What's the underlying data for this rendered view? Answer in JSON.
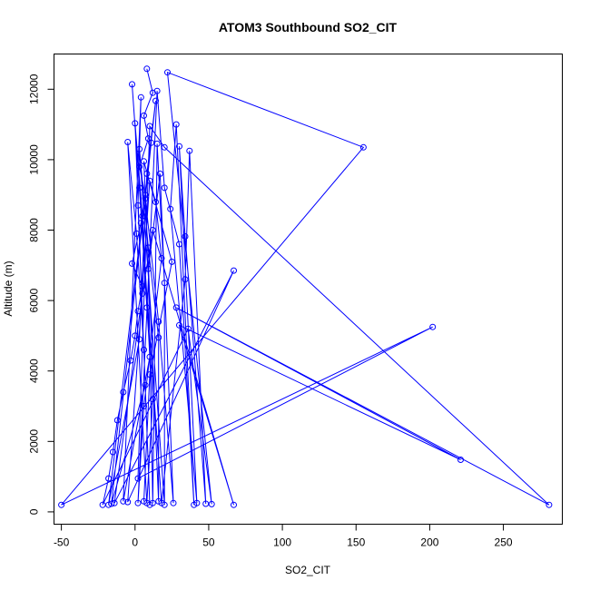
{
  "chart_data": {
    "type": "line",
    "title": "ATOM3 Southbound SO2_CIT",
    "xlabel": "SO2_CIT",
    "ylabel": "Altitude (m)",
    "xlim": [
      -55,
      290
    ],
    "ylim": [
      -350,
      13000
    ],
    "xticks": [
      -50,
      0,
      50,
      100,
      150,
      200,
      250
    ],
    "yticks": [
      0,
      2000,
      4000,
      6000,
      8000,
      10000,
      12000
    ],
    "grid": false,
    "series_color": "#0000ff",
    "series": [
      {
        "points": [
          {
            "x": 8,
            "y": 12580
          },
          {
            "x": 12,
            "y": 11900
          },
          {
            "x": 6,
            "y": 11250
          },
          {
            "x": 9,
            "y": 10600
          },
          {
            "x": 3,
            "y": 9800
          },
          {
            "x": 7,
            "y": 9000
          },
          {
            "x": 4,
            "y": 8200
          },
          {
            "x": -2,
            "y": 7050
          },
          {
            "x": 5,
            "y": 6400
          },
          {
            "x": 2,
            "y": 5700
          },
          {
            "x": 0,
            "y": 5000
          },
          {
            "x": -3,
            "y": 4300
          },
          {
            "x": -8,
            "y": 3400
          },
          {
            "x": -12,
            "y": 2600
          },
          {
            "x": -15,
            "y": 1700
          },
          {
            "x": -18,
            "y": 950
          },
          {
            "x": -22,
            "y": 200
          },
          {
            "x": 36,
            "y": 5200
          },
          {
            "x": 52,
            "y": 220
          },
          {
            "x": 22,
            "y": 12480
          },
          {
            "x": 155,
            "y": 10350
          },
          {
            "x": -50,
            "y": 200
          },
          {
            "x": 202,
            "y": 5250
          },
          {
            "x": 2,
            "y": 950
          },
          {
            "x": 10,
            "y": 10950
          },
          {
            "x": 20,
            "y": 10350
          },
          {
            "x": 281,
            "y": 200
          },
          {
            "x": 28,
            "y": 5800
          },
          {
            "x": 221,
            "y": 1480
          },
          {
            "x": 30,
            "y": 5300
          },
          {
            "x": 67,
            "y": 200
          },
          {
            "x": 12,
            "y": 8000
          },
          {
            "x": 5,
            "y": 6200
          },
          {
            "x": -14,
            "y": 250
          },
          {
            "x": 67,
            "y": 6850
          },
          {
            "x": -5,
            "y": 280
          },
          {
            "x": 10,
            "y": 9400
          },
          {
            "x": 14,
            "y": 8800
          },
          {
            "x": 18,
            "y": 7200
          },
          {
            "x": 6,
            "y": 3000
          },
          {
            "x": 2,
            "y": 250
          },
          {
            "x": 15,
            "y": 11950
          },
          {
            "x": 20,
            "y": 9200
          },
          {
            "x": 30,
            "y": 7600
          },
          {
            "x": 40,
            "y": 200
          },
          {
            "x": 28,
            "y": 11000
          },
          {
            "x": 24,
            "y": 8600
          },
          {
            "x": 42,
            "y": 250
          },
          {
            "x": 30,
            "y": 10380
          },
          {
            "x": 34,
            "y": 7820
          },
          {
            "x": 48,
            "y": 230
          },
          {
            "x": 37,
            "y": 10250
          },
          {
            "x": 34,
            "y": 6600
          },
          {
            "x": 18,
            "y": 250
          },
          {
            "x": -2,
            "y": 12140
          },
          {
            "x": 3,
            "y": 9200
          },
          {
            "x": 8,
            "y": 5800
          },
          {
            "x": 12,
            "y": 3200
          },
          {
            "x": 8,
            "y": 250
          },
          {
            "x": -5,
            "y": 10500
          },
          {
            "x": 1,
            "y": 7900
          },
          {
            "x": 6,
            "y": 4600
          },
          {
            "x": 10,
            "y": 200
          },
          {
            "x": 0,
            "y": 11030
          },
          {
            "x": 5,
            "y": 8400
          },
          {
            "x": 10,
            "y": 4400
          },
          {
            "x": -8,
            "y": 300
          },
          {
            "x": 4,
            "y": 11770
          },
          {
            "x": 2,
            "y": 8700
          },
          {
            "x": 7,
            "y": 3600
          },
          {
            "x": -16,
            "y": 230
          },
          {
            "x": 14,
            "y": 11670
          },
          {
            "x": 8,
            "y": 9600
          },
          {
            "x": 3,
            "y": 4900
          },
          {
            "x": -18,
            "y": 200
          },
          {
            "x": 11,
            "y": 10480
          },
          {
            "x": 7,
            "y": 8900
          },
          {
            "x": 16,
            "y": 5400
          },
          {
            "x": 26,
            "y": 250
          },
          {
            "x": 17,
            "y": 9600
          },
          {
            "x": 9,
            "y": 6900
          },
          {
            "x": 12,
            "y": 250
          },
          {
            "x": 15,
            "y": 10450
          },
          {
            "x": 20,
            "y": 6500
          },
          {
            "x": 20,
            "y": 200
          },
          {
            "x": 3,
            "y": 10300
          },
          {
            "x": 9,
            "y": 7500
          },
          {
            "x": 16,
            "y": 4950
          },
          {
            "x": 16,
            "y": 300
          },
          {
            "x": 6,
            "y": 9950
          },
          {
            "x": 25,
            "y": 7100
          },
          {
            "x": 10,
            "y": 3900
          },
          {
            "x": 6,
            "y": 300
          }
        ]
      }
    ]
  }
}
